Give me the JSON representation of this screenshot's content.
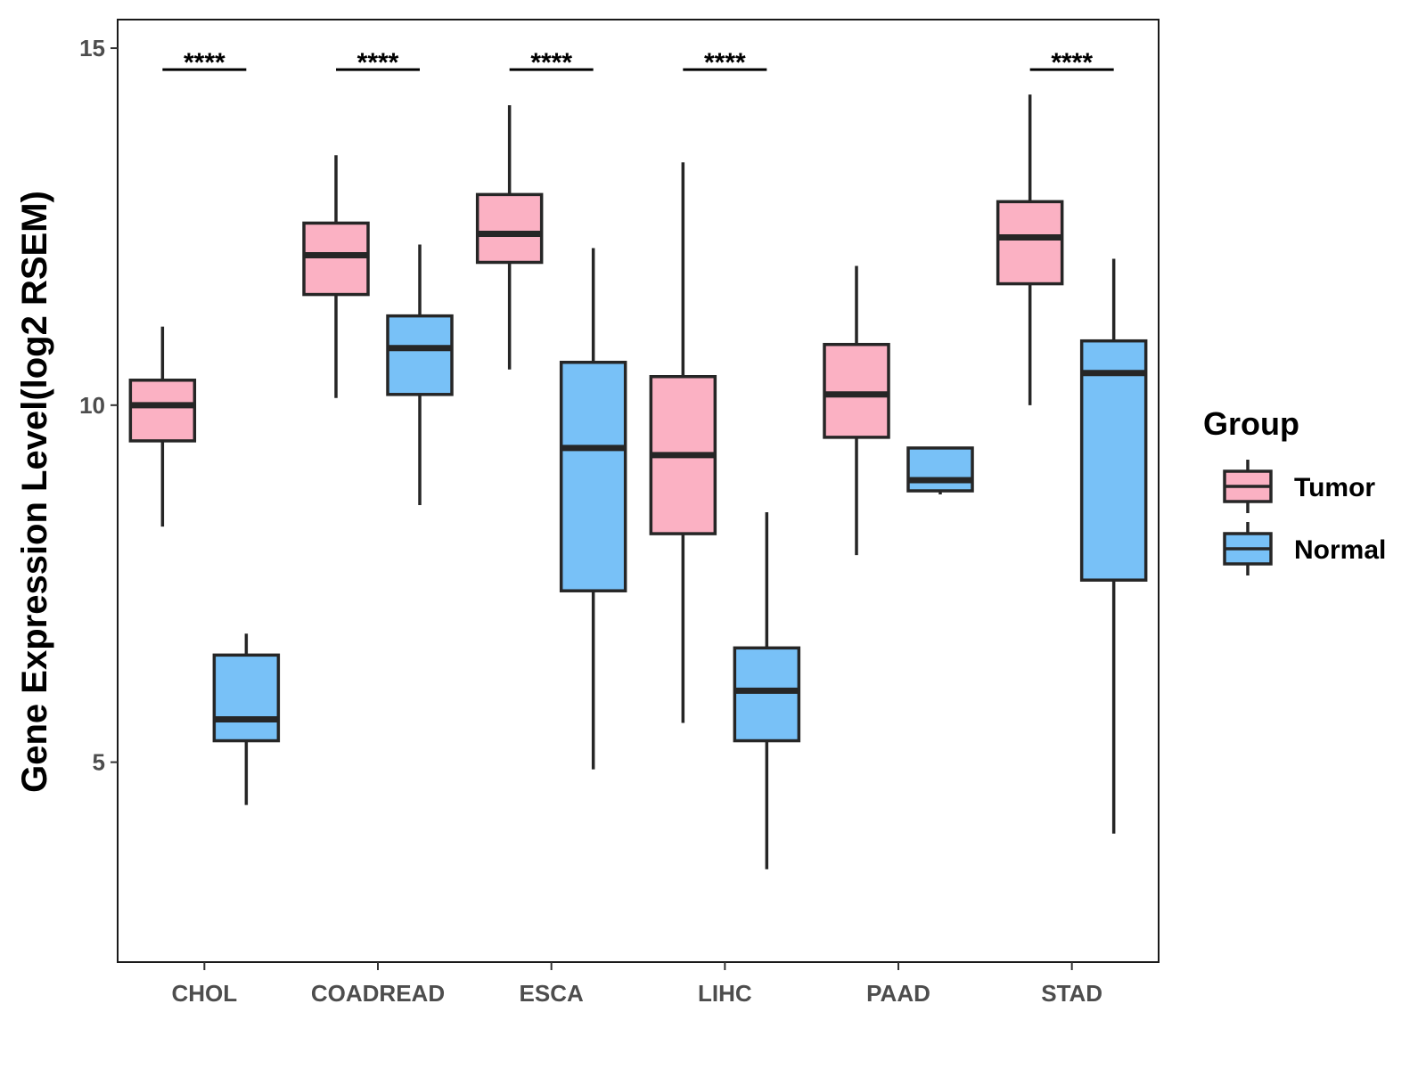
{
  "chart_data": {
    "type": "boxplot",
    "title": "",
    "xlabel": "",
    "ylabel": "Gene Expression Level(log2 RSEM)",
    "ylim": [
      2.2,
      15.4
    ],
    "yticks": [
      5,
      10,
      15
    ],
    "categories": [
      "CHOL",
      "COADREAD",
      "ESCA",
      "LIHC",
      "PAAD",
      "STAD"
    ],
    "legend": {
      "title": "Group",
      "position": "right"
    },
    "series": [
      {
        "name": "Tumor",
        "color": "#FBB1C3",
        "boxes": [
          {
            "category": "CHOL",
            "whislo": 8.3,
            "q1": 9.5,
            "med": 10.0,
            "q3": 10.35,
            "whishi": 11.1
          },
          {
            "category": "COADREAD",
            "whislo": 10.1,
            "q1": 11.55,
            "med": 12.1,
            "q3": 12.55,
            "whishi": 13.5
          },
          {
            "category": "ESCA",
            "whislo": 10.5,
            "q1": 12.0,
            "med": 12.4,
            "q3": 12.95,
            "whishi": 14.2
          },
          {
            "category": "LIHC",
            "whislo": 5.55,
            "q1": 8.2,
            "med": 9.3,
            "q3": 10.4,
            "whishi": 13.4
          },
          {
            "category": "PAAD",
            "whislo": 7.9,
            "q1": 9.55,
            "med": 10.15,
            "q3": 10.85,
            "whishi": 11.95
          },
          {
            "category": "STAD",
            "whislo": 10.0,
            "q1": 11.7,
            "med": 12.35,
            "q3": 12.85,
            "whishi": 14.35
          }
        ]
      },
      {
        "name": "Normal",
        "color": "#78C1F7",
        "boxes": [
          {
            "category": "CHOL",
            "whislo": 4.4,
            "q1": 5.3,
            "med": 5.6,
            "q3": 6.5,
            "whishi": 6.8
          },
          {
            "category": "COADREAD",
            "whislo": 8.6,
            "q1": 10.15,
            "med": 10.8,
            "q3": 11.25,
            "whishi": 12.25
          },
          {
            "category": "ESCA",
            "whislo": 4.9,
            "q1": 7.4,
            "med": 9.4,
            "q3": 10.6,
            "whishi": 12.2
          },
          {
            "category": "LIHC",
            "whislo": 3.5,
            "q1": 5.3,
            "med": 6.0,
            "q3": 6.6,
            "whishi": 8.5
          },
          {
            "category": "PAAD",
            "whislo": 8.75,
            "q1": 8.8,
            "med": 8.95,
            "q3": 9.4,
            "whishi": 9.4
          },
          {
            "category": "STAD",
            "whislo": 4.0,
            "q1": 7.55,
            "med": 10.45,
            "q3": 10.9,
            "whishi": 12.05
          }
        ]
      }
    ],
    "significance": [
      {
        "category": "CHOL",
        "label": "****"
      },
      {
        "category": "COADREAD",
        "label": "****"
      },
      {
        "category": "ESCA",
        "label": "****"
      },
      {
        "category": "LIHC",
        "label": "****"
      },
      {
        "category": "STAD",
        "label": "****"
      }
    ]
  }
}
